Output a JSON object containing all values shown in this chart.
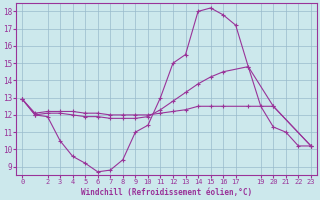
{
  "xlabel": "Windchill (Refroidissement éolien,°C)",
  "background_color": "#cce8ec",
  "line_color": "#993399",
  "grid_color": "#99bbcc",
  "ylim": [
    8.5,
    18.5
  ],
  "xlim": [
    -0.5,
    23.5
  ],
  "yticks": [
    9,
    10,
    11,
    12,
    13,
    14,
    15,
    16,
    17,
    18
  ],
  "xticks": [
    0,
    2,
    3,
    4,
    5,
    6,
    7,
    8,
    9,
    10,
    11,
    12,
    13,
    14,
    15,
    16,
    17,
    19,
    20,
    21,
    22,
    23
  ],
  "line1_x": [
    0,
    1,
    2,
    3,
    4,
    5,
    6,
    7,
    8,
    9,
    10,
    11,
    12,
    13,
    14,
    15,
    16,
    17,
    18,
    19,
    20,
    21,
    22,
    23
  ],
  "line1_y": [
    12.9,
    12.0,
    11.9,
    10.5,
    9.6,
    9.2,
    8.7,
    8.8,
    9.4,
    11.0,
    11.4,
    13.0,
    15.0,
    15.5,
    18.0,
    18.2,
    17.8,
    17.2,
    14.8,
    12.5,
    11.3,
    11.0,
    10.2,
    10.2
  ],
  "line2_x": [
    0,
    1,
    2,
    3,
    4,
    5,
    6,
    7,
    8,
    9,
    10,
    11,
    12,
    13,
    14,
    15,
    16,
    18,
    20,
    23
  ],
  "line2_y": [
    12.9,
    12.0,
    12.1,
    12.1,
    12.0,
    11.9,
    11.9,
    11.8,
    11.8,
    11.8,
    11.9,
    12.3,
    12.8,
    13.3,
    13.8,
    14.2,
    14.5,
    14.8,
    12.5,
    10.2
  ],
  "line3_x": [
    0,
    1,
    2,
    3,
    4,
    5,
    6,
    7,
    8,
    9,
    10,
    11,
    12,
    13,
    14,
    15,
    16,
    18,
    20,
    23
  ],
  "line3_y": [
    12.9,
    12.1,
    12.2,
    12.2,
    12.2,
    12.1,
    12.1,
    12.0,
    12.0,
    12.0,
    12.0,
    12.1,
    12.2,
    12.3,
    12.5,
    12.5,
    12.5,
    12.5,
    12.5,
    10.2
  ]
}
